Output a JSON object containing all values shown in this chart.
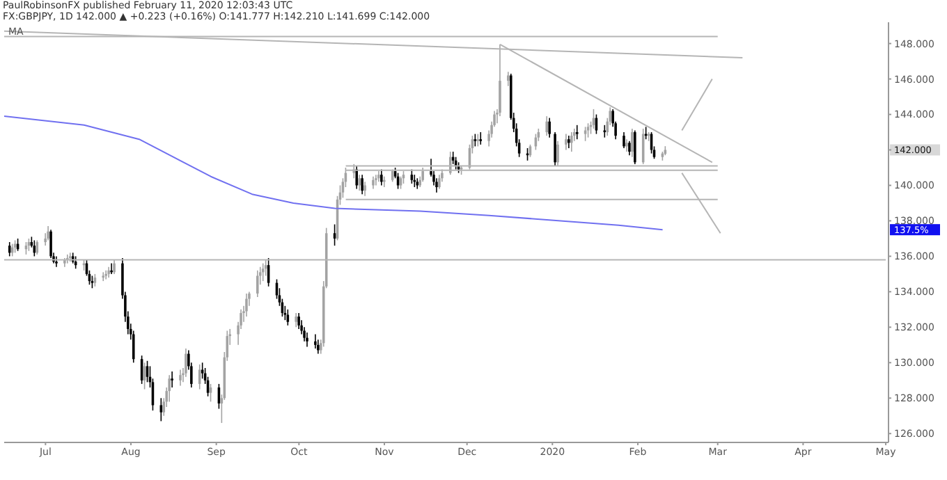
{
  "chart_data": {
    "type": "candlestick",
    "subtitle": "PaulRobinsonFX published February 11, 2020 12:03:43 UTC",
    "title": "FX:GBPJPY, 1D  142.000 ▲ +0.223 (+0.16%) O:141.777 H:142.210 L:141.699 C:142.000",
    "colors": [
      "#000000",
      "#a3a3a3",
      "#a3a3a3",
      "#000000",
      "#a3a3a3",
      "#a3a3a3",
      "#000000",
      "#000000",
      "#a3a3a3",
      "#a3a3a3",
      "#a3a3a3",
      "#000000",
      "#000000",
      "#000000",
      "#a3a3a3",
      "#a3a3a3",
      "#a3a3a3",
      "#000000",
      "#000000",
      "#a3a3a3",
      "#000000",
      "#000000",
      "#000000",
      "#a3a3a3",
      "#a3a3a3",
      "#a3a3a3",
      "#a3a3a3",
      "#000000",
      "#a3a3a3",
      "#000000",
      "#000000",
      "#000000",
      "#000000",
      "#000000",
      "#000000",
      "#a3a3a3",
      "#000000",
      "#000000",
      "#000000",
      "#000000",
      "#a3a3a3",
      "#a3a3a3",
      "#a3a3a3",
      "#000000",
      "#a3a3a3",
      "#a3a3a3",
      "#a3a3a3",
      "#000000",
      "#000000",
      "#a3a3a3",
      "#000000",
      "#000000",
      "#000000",
      "#a3a3a3",
      "#000000",
      "#a3a3a3",
      "#a3a3a3",
      "#a3a3a3",
      "#a3a3a3",
      "#a3a3a3",
      "#a3a3a3",
      "#a3a3a3",
      "#a3a3a3",
      "#a3a3a3",
      "#a3a3a3",
      "#a3a3a3",
      "#a3a3a3",
      "#a3a3a3",
      "#000000",
      "#000000",
      "#000000",
      "#000000",
      "#000000",
      "#000000",
      "#a3a3a3",
      "#000000",
      "#000000",
      "#000000",
      "#000000",
      "#000000",
      "#000000",
      "#a3a3a3",
      "#a3a3a3",
      "#a3a3a3",
      "#000000",
      "#a3a3a3",
      "#a3a3a3",
      "#a3a3a3",
      "#a3a3a3",
      "#a3a3a3",
      "#000000",
      "#a3a3a3",
      "#000000",
      "#a3a3a3",
      "#a3a3a3",
      "#a3a3a3",
      "#a3a3a3",
      "#000000",
      "#a3a3a3",
      "#a3a3a3",
      "#000000",
      "#000000",
      "#a3a3a3",
      "#a3a3a3",
      "#000000",
      "#000000",
      "#000000",
      "#a3a3a3",
      "#a3a3a3",
      "#000000",
      "#000000",
      "#000000",
      "#a3a3a3",
      "#a3a3a3",
      "#a3a3a3",
      "#000000",
      "#000000",
      "#000000",
      "#a3a3a3",
      "#a3a3a3",
      "#a3a3a3",
      "#000000",
      "#a3a3a3",
      "#000000",
      "#a3a3a3",
      "#a3a3a3",
      "#a3a3a3",
      "#a3a3a3",
      "#a3a3a3",
      "#a3a3a3",
      "#000000",
      "#000000",
      "#000000",
      "#000000",
      "#000000",
      "#a3a3a3",
      "#a3a3a3",
      "#a3a3a3",
      "#a3a3a3",
      "#000000",
      "#000000",
      "#a3a3a3",
      "#a3a3a3",
      "#000000",
      "#a3a3a3",
      "#a3a3a3",
      "#000000",
      "#a3a3a3",
      "#a3a3a3",
      "#a3a3a3",
      "#a3a3a3",
      "#000000",
      "#000000",
      "#a3a3a3",
      "#a3a3a3",
      "#000000",
      "#000000",
      "#000000",
      "#a3a3a3",
      "#000000",
      "#a3a3a3",
      "#000000",
      "#a3a3a3",
      "#000000",
      "#a3a3a3",
      "#000000",
      "#000000",
      "#a3a3a3",
      "#a3a3a3"
    ],
    "x": [
      "2019-06-18",
      "2019-06-19",
      "2019-06-20",
      "2019-06-21",
      "2019-06-24",
      "2019-06-25",
      "2019-06-26",
      "2019-06-27",
      "2019-06-28",
      "2019-07-01",
      "2019-07-02",
      "2019-07-03",
      "2019-07-04",
      "2019-07-05",
      "2019-07-08",
      "2019-07-09",
      "2019-07-10",
      "2019-07-11",
      "2019-07-12",
      "2019-07-15",
      "2019-07-16",
      "2019-07-17",
      "2019-07-18",
      "2019-07-19",
      "2019-07-22",
      "2019-07-23",
      "2019-07-24",
      "2019-07-25",
      "2019-07-26",
      "2019-07-29",
      "2019-07-30",
      "2019-07-31",
      "2019-08-01",
      "2019-08-02",
      "2019-08-05",
      "2019-08-06",
      "2019-08-07",
      "2019-08-08",
      "2019-08-09",
      "2019-08-12",
      "2019-08-13",
      "2019-08-14",
      "2019-08-15",
      "2019-08-16",
      "2019-08-19",
      "2019-08-20",
      "2019-08-21",
      "2019-08-22",
      "2019-08-23",
      "2019-08-26",
      "2019-08-27",
      "2019-08-28",
      "2019-08-29",
      "2019-08-30",
      "2019-09-02",
      "2019-09-03",
      "2019-09-04",
      "2019-09-05",
      "2019-09-06",
      "2019-09-09",
      "2019-09-10",
      "2019-09-11",
      "2019-09-12",
      "2019-09-13",
      "2019-09-16",
      "2019-09-17",
      "2019-09-18",
      "2019-09-19",
      "2019-09-20",
      "2019-09-23",
      "2019-09-24",
      "2019-09-25",
      "2019-09-26",
      "2019-09-27",
      "2019-09-30",
      "2019-10-01",
      "2019-10-02",
      "2019-10-03",
      "2019-10-04",
      "2019-10-07",
      "2019-10-08",
      "2019-10-09",
      "2019-10-10",
      "2019-10-11",
      "2019-10-14",
      "2019-10-15",
      "2019-10-16",
      "2019-10-17",
      "2019-10-18",
      "2019-10-21",
      "2019-10-22",
      "2019-10-23",
      "2019-10-24",
      "2019-10-25",
      "2019-10-28",
      "2019-10-29",
      "2019-10-30",
      "2019-10-31",
      "2019-11-01",
      "2019-11-04",
      "2019-11-05",
      "2019-11-06",
      "2019-11-07",
      "2019-11-08",
      "2019-11-11",
      "2019-11-12",
      "2019-11-13",
      "2019-11-14",
      "2019-11-15",
      "2019-11-18",
      "2019-11-19",
      "2019-11-20",
      "2019-11-21",
      "2019-11-22",
      "2019-11-25",
      "2019-11-26",
      "2019-11-27",
      "2019-11-28",
      "2019-11-29",
      "2019-12-02",
      "2019-12-03",
      "2019-12-04",
      "2019-12-05",
      "2019-12-06",
      "2019-12-09",
      "2019-12-10",
      "2019-12-11",
      "2019-12-12",
      "2019-12-13",
      "2019-12-16",
      "2019-12-17",
      "2019-12-18",
      "2019-12-19",
      "2019-12-20",
      "2019-12-23",
      "2019-12-24",
      "2019-12-26",
      "2019-12-27",
      "2019-12-30",
      "2019-12-31",
      "2020-01-02",
      "2020-01-03",
      "2020-01-06",
      "2020-01-07",
      "2020-01-08",
      "2020-01-09",
      "2020-01-10",
      "2020-01-13",
      "2020-01-14",
      "2020-01-15",
      "2020-01-16",
      "2020-01-17",
      "2020-01-20",
      "2020-01-21",
      "2020-01-22",
      "2020-01-23",
      "2020-01-24",
      "2020-01-27",
      "2020-01-28",
      "2020-01-29",
      "2020-01-30",
      "2020-01-31",
      "2020-02-03",
      "2020-02-04",
      "2020-02-05",
      "2020-02-06",
      "2020-02-07",
      "2020-02-10",
      "2020-02-11"
    ],
    "ohlc": [
      [
        136.6,
        136.8,
        136.0,
        136.2
      ],
      [
        136.2,
        136.7,
        136.0,
        136.5
      ],
      [
        136.5,
        136.9,
        136.2,
        136.7
      ],
      [
        136.7,
        137.0,
        136.3,
        136.4
      ],
      [
        136.4,
        136.8,
        136.1,
        136.6
      ],
      [
        136.6,
        137.0,
        136.3,
        136.8
      ],
      [
        136.8,
        137.1,
        136.5,
        136.6
      ],
      [
        136.6,
        136.9,
        136.0,
        136.2
      ],
      [
        136.2,
        136.9,
        136.1,
        136.8
      ],
      [
        136.8,
        137.3,
        136.6,
        137.0
      ],
      [
        137.0,
        137.7,
        136.9,
        137.4
      ],
      [
        137.4,
        137.5,
        135.9,
        136.0
      ],
      [
        136.0,
        136.2,
        135.6,
        135.7
      ],
      [
        135.7,
        136.0,
        135.4,
        135.6
      ],
      [
        135.6,
        135.9,
        135.4,
        135.8
      ],
      [
        135.8,
        136.1,
        135.6,
        135.9
      ],
      [
        135.9,
        136.2,
        135.7,
        136.0
      ],
      [
        136.0,
        136.2,
        135.6,
        135.7
      ],
      [
        135.7,
        136.0,
        135.3,
        135.5
      ],
      [
        135.5,
        135.8,
        135.2,
        135.6
      ],
      [
        135.6,
        135.8,
        134.9,
        135.0
      ],
      [
        135.0,
        135.2,
        134.4,
        134.6
      ],
      [
        134.6,
        134.9,
        134.2,
        134.5
      ],
      [
        134.5,
        135.0,
        134.3,
        134.8
      ],
      [
        134.8,
        135.1,
        134.6,
        134.9
      ],
      [
        134.9,
        135.2,
        134.7,
        135.0
      ],
      [
        135.0,
        135.4,
        134.8,
        135.2
      ],
      [
        135.2,
        135.6,
        135.0,
        135.1
      ],
      [
        135.1,
        135.8,
        135.0,
        135.6
      ],
      [
        135.6,
        135.9,
        133.6,
        133.8
      ],
      [
        133.8,
        134.0,
        132.3,
        132.6
      ],
      [
        132.6,
        132.9,
        131.6,
        131.9
      ],
      [
        131.9,
        132.2,
        131.3,
        131.6
      ],
      [
        131.6,
        131.8,
        130.0,
        130.2
      ],
      [
        130.2,
        130.4,
        128.8,
        129.0
      ],
      [
        129.0,
        130.0,
        128.5,
        129.8
      ],
      [
        129.8,
        130.1,
        128.9,
        129.2
      ],
      [
        129.2,
        129.8,
        128.6,
        128.9
      ],
      [
        128.9,
        129.1,
        127.3,
        127.6
      ],
      [
        127.6,
        128.0,
        126.7,
        127.2
      ],
      [
        127.2,
        128.0,
        127.0,
        127.8
      ],
      [
        127.8,
        128.6,
        127.5,
        128.4
      ],
      [
        128.4,
        129.3,
        127.8,
        129.1
      ],
      [
        129.1,
        129.5,
        128.6,
        129.0
      ],
      [
        129.0,
        129.6,
        128.7,
        129.3
      ],
      [
        129.3,
        129.7,
        128.9,
        129.4
      ],
      [
        129.4,
        130.8,
        129.2,
        130.5
      ],
      [
        130.5,
        130.7,
        129.6,
        129.8
      ],
      [
        129.8,
        130.0,
        128.6,
        128.8
      ],
      [
        128.8,
        129.9,
        128.5,
        129.6
      ],
      [
        129.6,
        130.0,
        129.1,
        129.4
      ],
      [
        129.4,
        129.7,
        128.8,
        129.0
      ],
      [
        129.0,
        129.2,
        128.1,
        128.3
      ],
      [
        128.3,
        128.8,
        127.8,
        128.6
      ],
      [
        128.6,
        128.8,
        127.4,
        127.7
      ],
      [
        127.7,
        128.2,
        126.6,
        128.0
      ],
      [
        128.0,
        130.6,
        127.9,
        130.3
      ],
      [
        130.3,
        131.8,
        130.1,
        131.5
      ],
      [
        131.5,
        131.9,
        131.0,
        131.6
      ],
      [
        131.6,
        132.3,
        131.0,
        132.1
      ],
      [
        132.1,
        133.0,
        131.9,
        132.8
      ],
      [
        132.8,
        133.2,
        132.3,
        132.9
      ],
      [
        132.9,
        133.9,
        132.6,
        133.6
      ],
      [
        133.6,
        134.0,
        133.2,
        133.9
      ],
      [
        133.9,
        135.2,
        133.7,
        134.9
      ],
      [
        134.9,
        135.4,
        134.4,
        135.1
      ],
      [
        135.1,
        135.6,
        134.6,
        135.3
      ],
      [
        135.3,
        135.8,
        134.9,
        135.5
      ],
      [
        135.5,
        135.9,
        134.3,
        134.5
      ],
      [
        134.5,
        134.7,
        133.6,
        133.8
      ],
      [
        133.8,
        134.2,
        133.2,
        133.4
      ],
      [
        133.4,
        133.6,
        132.6,
        132.8
      ],
      [
        132.8,
        133.2,
        132.4,
        132.7
      ],
      [
        132.7,
        133.0,
        132.1,
        132.3
      ],
      [
        132.3,
        132.8,
        132.0,
        132.6
      ],
      [
        132.6,
        132.8,
        131.9,
        132.1
      ],
      [
        132.1,
        132.4,
        131.6,
        131.8
      ],
      [
        131.8,
        132.0,
        131.2,
        131.4
      ],
      [
        131.4,
        131.7,
        130.9,
        131.2
      ],
      [
        131.2,
        131.6,
        130.8,
        131.0
      ],
      [
        131.0,
        131.3,
        130.5,
        130.7
      ],
      [
        130.7,
        131.3,
        130.5,
        131.1
      ],
      [
        131.1,
        134.6,
        130.9,
        134.3
      ],
      [
        134.3,
        137.6,
        134.2,
        137.3
      ],
      [
        137.3,
        137.8,
        136.6,
        137.0
      ],
      [
        137.0,
        139.4,
        136.9,
        139.2
      ],
      [
        139.2,
        140.0,
        138.9,
        139.6
      ],
      [
        139.6,
        140.4,
        139.3,
        140.2
      ],
      [
        140.2,
        141.0,
        139.9,
        140.7
      ],
      [
        140.7,
        141.2,
        140.4,
        140.9
      ],
      [
        140.9,
        141.1,
        139.8,
        140.0
      ],
      [
        140.0,
        140.6,
        139.7,
        140.4
      ],
      [
        140.4,
        140.6,
        139.5,
        139.7
      ],
      [
        139.7,
        140.2,
        139.4,
        140.0
      ],
      [
        140.0,
        140.5,
        139.8,
        140.3
      ],
      [
        140.3,
        140.6,
        140.0,
        140.4
      ],
      [
        140.4,
        140.8,
        140.2,
        140.6
      ],
      [
        140.6,
        140.9,
        140.0,
        140.2
      ],
      [
        140.2,
        140.5,
        139.9,
        140.3
      ],
      [
        140.3,
        140.9,
        140.2,
        140.8
      ],
      [
        140.8,
        141.0,
        140.4,
        140.5
      ],
      [
        140.5,
        140.7,
        139.8,
        140.0
      ],
      [
        140.0,
        140.5,
        139.8,
        140.4
      ],
      [
        140.4,
        140.8,
        140.1,
        140.6
      ],
      [
        140.6,
        140.9,
        140.1,
        140.3
      ],
      [
        140.3,
        140.6,
        139.9,
        140.2
      ],
      [
        140.2,
        140.4,
        139.8,
        140.0
      ],
      [
        140.0,
        140.5,
        139.9,
        140.3
      ],
      [
        140.3,
        141.0,
        140.2,
        140.8
      ],
      [
        140.8,
        141.5,
        140.5,
        140.6
      ],
      [
        140.6,
        140.8,
        140.0,
        140.2
      ],
      [
        140.2,
        140.4,
        139.6,
        139.9
      ],
      [
        139.9,
        140.6,
        139.8,
        140.4
      ],
      [
        140.4,
        140.9,
        140.2,
        140.7
      ],
      [
        140.7,
        141.9,
        140.6,
        141.6
      ],
      [
        141.6,
        141.9,
        141.2,
        141.4
      ],
      [
        141.4,
        141.6,
        140.9,
        141.1
      ],
      [
        141.1,
        141.3,
        140.7,
        140.9
      ],
      [
        140.9,
        141.1,
        140.6,
        141.0
      ],
      [
        141.0,
        142.3,
        140.9,
        142.1
      ],
      [
        142.1,
        142.8,
        141.8,
        142.6
      ],
      [
        142.6,
        142.9,
        142.2,
        142.5
      ],
      [
        142.5,
        142.9,
        142.2,
        142.6
      ],
      [
        142.6,
        143.0,
        142.3,
        142.5
      ],
      [
        142.5,
        143.1,
        142.2,
        142.9
      ],
      [
        142.9,
        143.6,
        142.7,
        143.4
      ],
      [
        143.4,
        144.2,
        143.3,
        144.0
      ],
      [
        144.0,
        144.3,
        143.5,
        144.1
      ],
      [
        144.1,
        147.95,
        143.9,
        145.9
      ],
      [
        145.9,
        146.4,
        145.6,
        146.2
      ],
      [
        146.2,
        146.3,
        143.7,
        143.8
      ],
      [
        143.8,
        144.1,
        143.0,
        143.2
      ],
      [
        143.2,
        143.5,
        142.2,
        142.4
      ],
      [
        142.4,
        142.6,
        141.6,
        141.8
      ],
      [
        141.8,
        142.1,
        141.4,
        141.7
      ],
      [
        141.7,
        142.3,
        141.6,
        142.2
      ],
      [
        142.2,
        142.9,
        142.0,
        142.7
      ],
      [
        142.7,
        143.2,
        142.5,
        143.0
      ],
      [
        143.0,
        143.9,
        142.8,
        143.6
      ],
      [
        143.6,
        143.8,
        142.7,
        142.9
      ],
      [
        142.9,
        143.0,
        141.1,
        141.3
      ],
      [
        141.3,
        142.5,
        141.1,
        142.3
      ],
      [
        142.3,
        142.9,
        142.0,
        142.6
      ],
      [
        142.6,
        142.8,
        142.1,
        142.4
      ],
      [
        142.4,
        143.0,
        141.9,
        142.8
      ],
      [
        142.8,
        143.2,
        142.5,
        143.0
      ],
      [
        143.0,
        143.4,
        142.6,
        142.9
      ],
      [
        142.9,
        143.3,
        142.5,
        143.1
      ],
      [
        143.1,
        143.5,
        142.7,
        143.3
      ],
      [
        143.3,
        143.6,
        142.9,
        143.4
      ],
      [
        143.4,
        144.3,
        143.2,
        143.8
      ],
      [
        143.8,
        144.0,
        142.9,
        143.1
      ],
      [
        143.1,
        143.4,
        142.7,
        143.0
      ],
      [
        143.0,
        143.8,
        142.8,
        143.6
      ],
      [
        143.6,
        144.4,
        143.4,
        144.2
      ],
      [
        144.2,
        144.3,
        143.3,
        143.5
      ],
      [
        143.5,
        143.6,
        142.6,
        142.8
      ],
      [
        142.8,
        143.0,
        142.1,
        142.2
      ],
      [
        142.2,
        142.6,
        141.9,
        142.4
      ],
      [
        142.4,
        142.5,
        141.7,
        141.9
      ],
      [
        141.9,
        143.2,
        141.6,
        143.0
      ],
      [
        143.0,
        143.1,
        141.2,
        141.3
      ],
      [
        141.3,
        143.2,
        141.2,
        142.9
      ],
      [
        142.9,
        143.3,
        142.6,
        142.8
      ],
      [
        142.8,
        143.0,
        142.5,
        142.9
      ],
      [
        142.9,
        143.0,
        141.8,
        142.0
      ],
      [
        142.0,
        142.2,
        141.5,
        141.6
      ],
      [
        141.6,
        141.9,
        141.4,
        141.8
      ],
      [
        141.777,
        142.21,
        141.699,
        142.0
      ]
    ],
    "series": [
      {
        "type": "line",
        "color": "#7070f0",
        "x": [
          "2019-06-16",
          "2019-07-15",
          "2019-08-04",
          "2019-08-30",
          "2019-09-14",
          "2019-09-29",
          "2019-10-14",
          "2019-11-14",
          "2019-12-09",
          "2020-01-04",
          "2020-01-25",
          "2020-02-10"
        ],
        "values": [
          143.9,
          143.4,
          142.6,
          140.5,
          139.5,
          139.0,
          138.7,
          138.55,
          138.3,
          138.0,
          137.75,
          137.5
        ]
      },
      {
        "type": "line",
        "color": "#b5b5b5",
        "x": [
          "2019-06-16",
          "2020-03-01"
        ],
        "values": [
          148.4,
          148.4
        ]
      },
      {
        "type": "line",
        "color": "#b5b5b5",
        "x": [
          "2019-06-16",
          "2020-03-10"
        ],
        "values": [
          148.7,
          147.2
        ]
      },
      {
        "type": "line",
        "color": "#b5b5b5",
        "x": [
          "2019-12-13",
          "2020-02-28"
        ],
        "values": [
          147.95,
          141.3
        ]
      },
      {
        "type": "line",
        "color": "#b5b5b5",
        "x": [
          "2019-10-18",
          "2020-03-01"
        ],
        "values": [
          141.1,
          141.1
        ]
      },
      {
        "type": "line",
        "color": "#b5b5b5",
        "x": [
          "2019-10-18",
          "2020-03-01"
        ],
        "values": [
          140.85,
          140.85
        ]
      },
      {
        "type": "line",
        "color": "#b5b5b5",
        "x": [
          "2019-10-18",
          "2020-03-01"
        ],
        "values": [
          139.2,
          139.2
        ]
      },
      {
        "type": "line",
        "color": "#b5b5b5",
        "x": [
          "2019-06-16",
          "2020-05-01"
        ],
        "values": [
          135.8,
          135.8
        ]
      },
      {
        "type": "line",
        "color": "#b5b5b5",
        "x": [
          "2020-02-17",
          "2020-02-28"
        ],
        "values": [
          143.1,
          146.0
        ]
      },
      {
        "type": "line",
        "color": "#b5b5b5",
        "x": [
          "2020-02-17",
          "2020-03-02"
        ],
        "values": [
          140.7,
          137.3
        ]
      }
    ],
    "xlim": [
      "2019-06-16",
      "2020-05-02"
    ],
    "xticks": [
      {
        "value": "2019-07-01",
        "label": "Jul"
      },
      {
        "value": "2019-08-01",
        "label": "Aug"
      },
      {
        "value": "2019-09-01",
        "label": "Sep"
      },
      {
        "value": "2019-10-01",
        "label": "Oct"
      },
      {
        "value": "2019-11-01",
        "label": "Nov"
      },
      {
        "value": "2019-12-01",
        "label": "Dec"
      },
      {
        "value": "2020-01-01",
        "label": "2020"
      },
      {
        "value": "2020-02-01",
        "label": "Feb"
      },
      {
        "value": "2020-03-01",
        "label": "Mar"
      },
      {
        "value": "2020-04-01",
        "label": "Apr"
      },
      {
        "value": "2020-05-01",
        "label": "May"
      }
    ],
    "ylim": [
      125.5,
      149.2
    ],
    "yticks": [
      {
        "value": 126,
        "label": "126.000"
      },
      {
        "value": 128,
        "label": "128.000"
      },
      {
        "value": 130,
        "label": "130.000"
      },
      {
        "value": 132,
        "label": "132.000"
      },
      {
        "value": 134,
        "label": "134.000"
      },
      {
        "value": 136,
        "label": "136.000"
      },
      {
        "value": 138,
        "label": "138.000"
      },
      {
        "value": 140,
        "label": "140.000"
      },
      {
        "value": 142,
        "label": null
      },
      {
        "value": 144,
        "label": "144.000"
      },
      {
        "value": 146,
        "label": "146.000"
      },
      {
        "value": 148,
        "label": "148.000"
      }
    ],
    "annotations": [
      "MA",
      "142.000",
      "137.5%"
    ]
  }
}
